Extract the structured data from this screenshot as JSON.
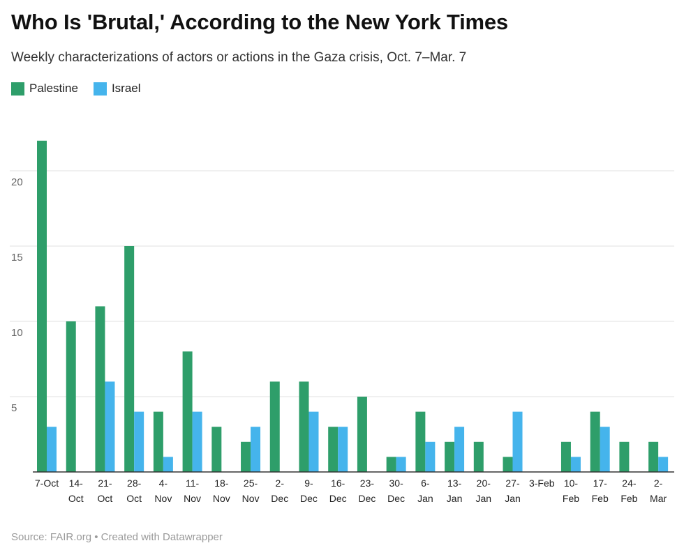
{
  "header": {
    "title": "Who Is 'Brutal,' According to the New York Times",
    "subtitle": "Weekly characterizations of actors or actions in the Gaza crisis, Oct. 7–Mar. 7"
  },
  "footer": {
    "source": "Source: FAIR.org • Created with Datawrapper"
  },
  "colors": {
    "palestine": "#2e9e6a",
    "israel": "#45b4ec",
    "grid": "#e2e2e2",
    "axis": "#333333",
    "tick_text": "#666666"
  },
  "chart_data": {
    "type": "bar",
    "title": "Who Is 'Brutal,' According to the New York Times",
    "subtitle": "Weekly characterizations of actors or actions in the Gaza crisis, Oct. 7–Mar. 7",
    "categories": [
      [
        "7-Oct"
      ],
      [
        "14-",
        "Oct"
      ],
      [
        "21-",
        "Oct"
      ],
      [
        "28-",
        "Oct"
      ],
      [
        "4-",
        "Nov"
      ],
      [
        "11-",
        "Nov"
      ],
      [
        "18-",
        "Nov"
      ],
      [
        "25-",
        "Nov"
      ],
      [
        "2-",
        "Dec"
      ],
      [
        "9-",
        "Dec"
      ],
      [
        "16-",
        "Dec"
      ],
      [
        "23-",
        "Dec"
      ],
      [
        "30-",
        "Dec"
      ],
      [
        "6-",
        "Jan"
      ],
      [
        "13-",
        "Jan"
      ],
      [
        "20-",
        "Jan"
      ],
      [
        "27-",
        "Jan"
      ],
      [
        "3-Feb"
      ],
      [
        "10-",
        "Feb"
      ],
      [
        "17-",
        "Feb"
      ],
      [
        "24-",
        "Feb"
      ],
      [
        "2-",
        "Mar"
      ]
    ],
    "series": [
      {
        "name": "Palestine",
        "color": "#2e9e6a",
        "values": [
          22,
          10,
          11,
          15,
          4,
          8,
          3,
          2,
          6,
          6,
          3,
          5,
          1,
          4,
          2,
          2,
          1,
          0,
          2,
          4,
          2,
          2
        ]
      },
      {
        "name": "Israel",
        "color": "#45b4ec",
        "values": [
          3,
          0,
          6,
          4,
          1,
          4,
          0,
          3,
          0,
          4,
          3,
          0,
          1,
          2,
          3,
          0,
          4,
          0,
          1,
          3,
          0,
          1
        ]
      }
    ],
    "yticks": [
      5,
      10,
      15,
      20
    ],
    "ylim": [
      0,
      23
    ],
    "grid": true,
    "legend": "top-left",
    "xlabel": "",
    "ylabel": ""
  }
}
